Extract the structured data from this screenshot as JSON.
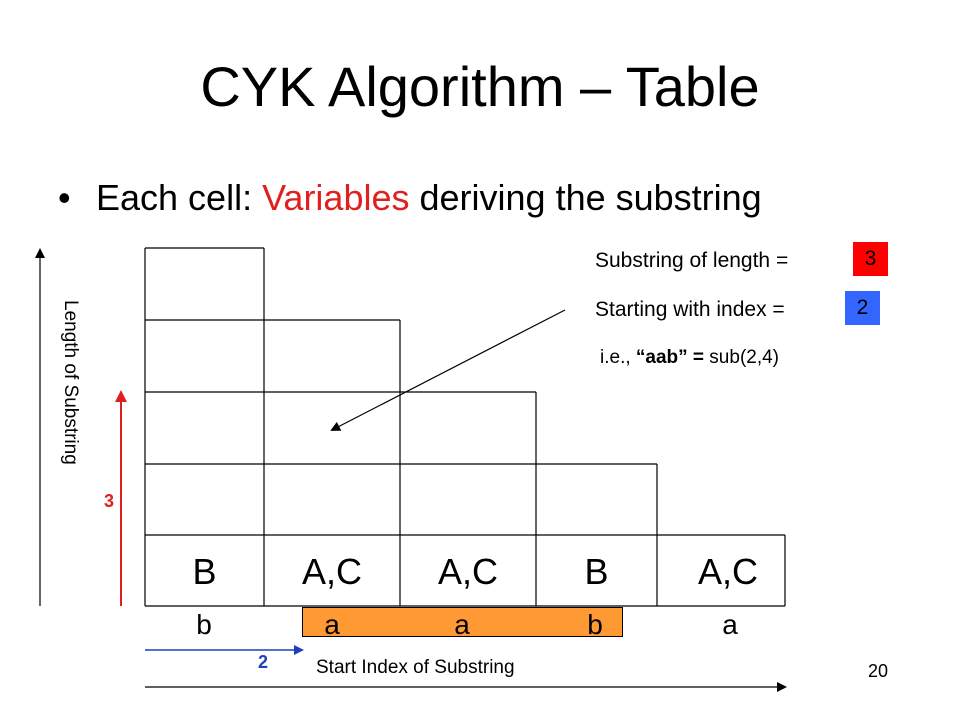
{
  "slide": {
    "title": "CYK Algorithm – Table",
    "bullet_prefix": "Each cell: ",
    "bullet_highlight": "Variables",
    "bullet_suffix": " deriving the substring",
    "page_number": "20"
  },
  "annotation": {
    "length_label": "Substring of length = ",
    "length_value": "3",
    "index_label": "Starting with index = ",
    "index_value": "2",
    "ie_prefix": "i.e., ",
    "ie_quote": "“aab” =",
    "ie_suffix": " sub(2,4)"
  },
  "table": {
    "bottom_row": [
      "B",
      "A,C",
      "A,C",
      "B",
      "A,C"
    ],
    "input_chars": [
      "b",
      "a",
      "a",
      "b",
      "a"
    ]
  },
  "axes": {
    "x_label": "Start Index of Substring",
    "y_label": "Length of Substring",
    "x_marker": "2",
    "y_marker": "3"
  },
  "colors": {
    "red": "#e0201f",
    "blue": "#1f3fbf",
    "orange": "#ff9933"
  }
}
